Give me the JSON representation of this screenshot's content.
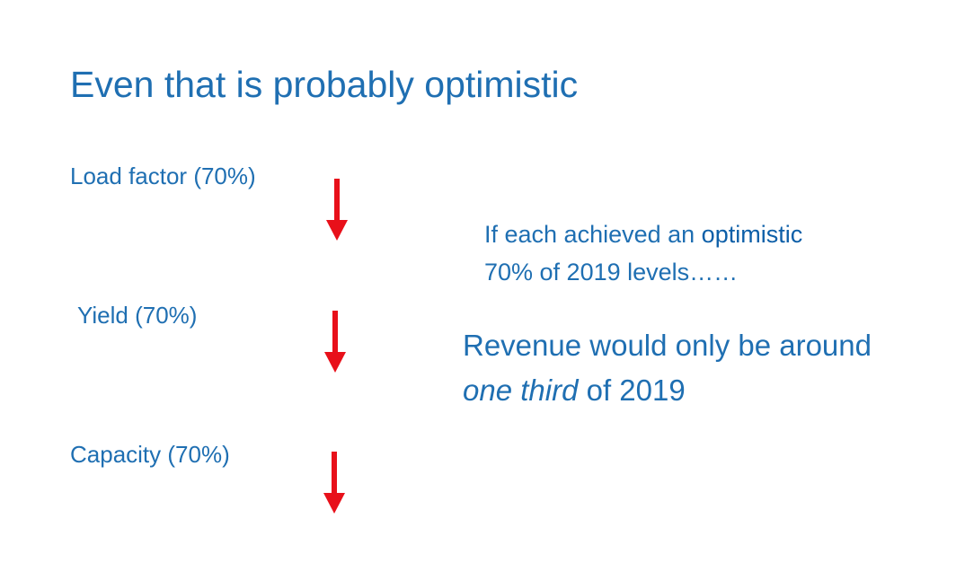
{
  "slide": {
    "title": "Even that is probably optimistic"
  },
  "factors": [
    {
      "label": "Load factor (70%)",
      "arrow_icon": "down-arrow-icon"
    },
    {
      "label": "Yield (70%)",
      "arrow_icon": "down-arrow-icon"
    },
    {
      "label": "Capacity (70%)",
      "arrow_icon": "down-arrow-icon"
    }
  ],
  "note": {
    "line1_prefix": "If each achieved an ",
    "line1_emphasis": "optimistic",
    "line2": "70% of 2019 levels……"
  },
  "conclusion": {
    "line1": "Revenue would only be around",
    "line2_italic": "one third",
    "line2_rest": " of 2019"
  },
  "colors": {
    "text": "#1f6fb2",
    "arrow": "#e8101a",
    "background": "#ffffff"
  }
}
